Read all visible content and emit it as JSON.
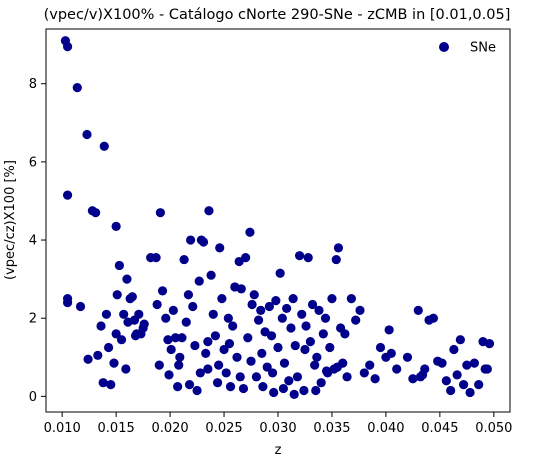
{
  "chart_data": {
    "type": "scatter",
    "title": "(vpec/v)X100% - Catálogo cNorte 290-SNe -  zCMB in [0.01,0.05]",
    "xlabel": "z",
    "ylabel": "(vpec/cz)X100 [%]",
    "xlim": [
      0.0085,
      0.0515
    ],
    "ylim": [
      -0.4,
      9.4
    ],
    "xticks": [
      0.01,
      0.015,
      0.02,
      0.025,
      0.03,
      0.035,
      0.04,
      0.045,
      0.05
    ],
    "xtick_labels": [
      "0.010",
      "0.015",
      "0.020",
      "0.025",
      "0.030",
      "0.035",
      "0.040",
      "0.045",
      "0.050"
    ],
    "yticks": [
      0,
      2,
      4,
      6,
      8
    ],
    "ytick_labels": [
      "0",
      "2",
      "4",
      "6",
      "8"
    ],
    "grid": false,
    "legend_position": "top-right",
    "series": [
      {
        "name": "SNe",
        "color": "#00008b",
        "marker": "circle",
        "points": [
          [
            0.0103,
            9.1
          ],
          [
            0.0105,
            8.95
          ],
          [
            0.0114,
            7.9
          ],
          [
            0.0123,
            6.7
          ],
          [
            0.0139,
            6.4
          ],
          [
            0.0105,
            5.15
          ],
          [
            0.0128,
            4.75
          ],
          [
            0.0131,
            4.7
          ],
          [
            0.015,
            4.35
          ],
          [
            0.0191,
            4.7
          ],
          [
            0.0105,
            2.5
          ],
          [
            0.0105,
            2.4
          ],
          [
            0.0117,
            2.3
          ],
          [
            0.0124,
            0.95
          ],
          [
            0.0133,
            1.05
          ],
          [
            0.0136,
            1.8
          ],
          [
            0.0141,
            2.1
          ],
          [
            0.0138,
            0.35
          ],
          [
            0.0145,
            0.3
          ],
          [
            0.0148,
            0.85
          ],
          [
            0.0143,
            1.25
          ],
          [
            0.0151,
            2.6
          ],
          [
            0.015,
            1.6
          ],
          [
            0.0153,
            3.35
          ],
          [
            0.0155,
            1.45
          ],
          [
            0.0157,
            2.1
          ],
          [
            0.0159,
            0.7
          ],
          [
            0.0161,
            1.9
          ],
          [
            0.0163,
            2.5
          ],
          [
            0.016,
            3.0
          ],
          [
            0.0165,
            2.55
          ],
          [
            0.0167,
            1.95
          ],
          [
            0.0169,
            1.6
          ],
          [
            0.0171,
            2.1
          ],
          [
            0.0173,
            1.6
          ],
          [
            0.0176,
            1.85
          ],
          [
            0.0182,
            3.55
          ],
          [
            0.0187,
            3.55
          ],
          [
            0.019,
            0.8
          ],
          [
            0.0193,
            2.7
          ],
          [
            0.0196,
            2.0
          ],
          [
            0.0199,
            0.55
          ],
          [
            0.0201,
            1.2
          ],
          [
            0.0203,
            2.2
          ],
          [
            0.0205,
            1.5
          ],
          [
            0.0207,
            0.25
          ],
          [
            0.0209,
            1.0
          ],
          [
            0.0211,
            1.5
          ],
          [
            0.0213,
            3.5
          ],
          [
            0.0215,
            1.9
          ],
          [
            0.0217,
            2.6
          ],
          [
            0.0219,
            4.0
          ],
          [
            0.0221,
            2.3
          ],
          [
            0.0223,
            1.3
          ],
          [
            0.0225,
            0.15
          ],
          [
            0.0227,
            2.95
          ],
          [
            0.0229,
            4.0
          ],
          [
            0.0231,
            3.95
          ],
          [
            0.0233,
            1.1
          ],
          [
            0.0235,
            0.7
          ],
          [
            0.0236,
            4.75
          ],
          [
            0.0238,
            3.1
          ],
          [
            0.024,
            2.1
          ],
          [
            0.0242,
            1.55
          ],
          [
            0.0244,
            0.35
          ],
          [
            0.0246,
            3.8
          ],
          [
            0.0248,
            2.5
          ],
          [
            0.025,
            1.2
          ],
          [
            0.0252,
            0.6
          ],
          [
            0.0254,
            2.0
          ],
          [
            0.0256,
            0.25
          ],
          [
            0.0258,
            1.8
          ],
          [
            0.026,
            2.8
          ],
          [
            0.0262,
            1.0
          ],
          [
            0.0264,
            3.45
          ],
          [
            0.0266,
            2.75
          ],
          [
            0.0268,
            0.2
          ],
          [
            0.027,
            3.55
          ],
          [
            0.0272,
            1.5
          ],
          [
            0.0274,
            4.2
          ],
          [
            0.0276,
            2.35
          ],
          [
            0.0278,
            2.6
          ],
          [
            0.028,
            0.5
          ],
          [
            0.0282,
            1.95
          ],
          [
            0.0284,
            2.2
          ],
          [
            0.0286,
            0.25
          ],
          [
            0.0288,
            1.65
          ],
          [
            0.029,
            0.75
          ],
          [
            0.0292,
            2.3
          ],
          [
            0.0294,
            1.55
          ],
          [
            0.0296,
            0.1
          ],
          [
            0.0298,
            2.45
          ],
          [
            0.03,
            1.25
          ],
          [
            0.0302,
            3.15
          ],
          [
            0.0304,
            2.0
          ],
          [
            0.0306,
            0.85
          ],
          [
            0.0308,
            2.25
          ],
          [
            0.031,
            0.4
          ],
          [
            0.0312,
            1.75
          ],
          [
            0.0314,
            2.5
          ],
          [
            0.0316,
            1.3
          ],
          [
            0.0318,
            0.5
          ],
          [
            0.032,
            3.6
          ],
          [
            0.0322,
            2.1
          ],
          [
            0.0324,
            0.15
          ],
          [
            0.0326,
            1.8
          ],
          [
            0.0328,
            3.55
          ],
          [
            0.033,
            1.4
          ],
          [
            0.0332,
            2.35
          ],
          [
            0.0334,
            0.8
          ],
          [
            0.0336,
            1.0
          ],
          [
            0.0338,
            2.2
          ],
          [
            0.034,
            0.35
          ],
          [
            0.0342,
            1.6
          ],
          [
            0.0344,
            2.0
          ],
          [
            0.0346,
            0.6
          ],
          [
            0.0348,
            1.25
          ],
          [
            0.035,
            2.5
          ],
          [
            0.0352,
            0.7
          ],
          [
            0.0354,
            3.5
          ],
          [
            0.0356,
            3.8
          ],
          [
            0.0358,
            1.75
          ],
          [
            0.036,
            0.85
          ],
          [
            0.0362,
            1.6
          ],
          [
            0.0364,
            0.5
          ],
          [
            0.0368,
            2.5
          ],
          [
            0.0372,
            1.95
          ],
          [
            0.0376,
            2.2
          ],
          [
            0.038,
            0.6
          ],
          [
            0.0385,
            0.8
          ],
          [
            0.039,
            0.45
          ],
          [
            0.0395,
            1.25
          ],
          [
            0.04,
            1.0
          ],
          [
            0.0403,
            1.7
          ],
          [
            0.0405,
            1.1
          ],
          [
            0.041,
            0.7
          ],
          [
            0.042,
            1.0
          ],
          [
            0.0425,
            0.45
          ],
          [
            0.043,
            2.2
          ],
          [
            0.0432,
            0.5
          ],
          [
            0.0436,
            0.7
          ],
          [
            0.044,
            1.95
          ],
          [
            0.0444,
            2.0
          ],
          [
            0.0448,
            0.9
          ],
          [
            0.0452,
            0.85
          ],
          [
            0.0456,
            0.4
          ],
          [
            0.046,
            0.15
          ],
          [
            0.0463,
            1.2
          ],
          [
            0.0466,
            0.55
          ],
          [
            0.0469,
            1.45
          ],
          [
            0.0472,
            0.3
          ],
          [
            0.0475,
            0.8
          ],
          [
            0.0478,
            0.1
          ],
          [
            0.0482,
            0.85
          ],
          [
            0.0486,
            0.3
          ],
          [
            0.049,
            1.4
          ],
          [
            0.0492,
            0.7
          ],
          [
            0.0494,
            0.7
          ],
          [
            0.0496,
            1.35
          ],
          [
            0.0434,
            0.55
          ],
          [
            0.0355,
            0.75
          ],
          [
            0.0345,
            0.65
          ],
          [
            0.0335,
            0.15
          ],
          [
            0.0325,
            1.2
          ],
          [
            0.0315,
            0.05
          ],
          [
            0.0305,
            0.2
          ],
          [
            0.0295,
            0.6
          ],
          [
            0.0285,
            1.1
          ],
          [
            0.0275,
            0.9
          ],
          [
            0.0265,
            0.5
          ],
          [
            0.0255,
            1.35
          ],
          [
            0.0245,
            0.8
          ],
          [
            0.0235,
            1.4
          ],
          [
            0.0228,
            0.6
          ],
          [
            0.0218,
            0.3
          ],
          [
            0.0208,
            0.8
          ],
          [
            0.0198,
            1.45
          ],
          [
            0.0188,
            2.35
          ],
          [
            0.0175,
            1.75
          ],
          [
            0.0168,
            1.55
          ]
        ]
      }
    ]
  }
}
